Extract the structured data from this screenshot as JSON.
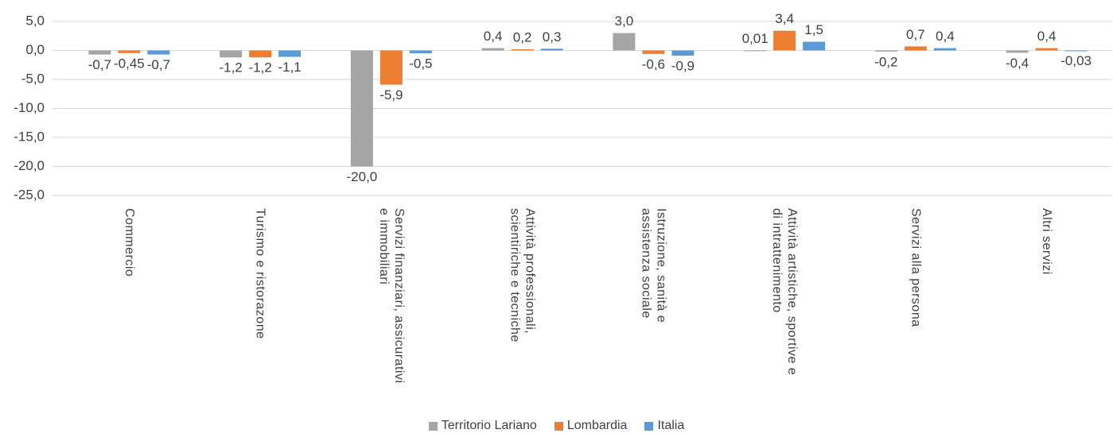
{
  "chart_data": {
    "type": "bar",
    "categories": [
      "Commercio",
      "Turismo e ristorazone",
      "Servizi finanziari, assicurativi e immobiliari",
      "Attività professionali, scientiriche e tecniche",
      "Istruzione, sanità e assistenza sociale",
      "Attività artistiche, sportive e di intrattenimento",
      "Servizi alla persona",
      "Altri servizi"
    ],
    "series": [
      {
        "name": "Territorio Lariano",
        "color": "#a5a5a5",
        "values": [
          -0.7,
          -1.2,
          -20.0,
          0.4,
          3.0,
          0.01,
          -0.2,
          -0.4
        ],
        "value_labels": [
          "-0,7",
          "-1,2",
          "-20,0",
          "0,4",
          "3,0",
          "0,01",
          "-0,2",
          "-0,4"
        ]
      },
      {
        "name": "Lombardia",
        "color": "#ed7d31",
        "values": [
          -0.45,
          -1.2,
          -5.9,
          0.2,
          -0.6,
          3.4,
          0.7,
          0.4
        ],
        "value_labels": [
          "-0,45",
          "-1,2",
          "-5,9",
          "0,2",
          "-0,6",
          "3,4",
          "0,7",
          "0,4"
        ]
      },
      {
        "name": "Italia",
        "color": "#5b9bd5",
        "values": [
          -0.7,
          -1.1,
          -0.5,
          0.3,
          -0.9,
          1.5,
          0.4,
          -0.03
        ],
        "value_labels": [
          "-0,7",
          "-1,1",
          "-0,5",
          "0,3",
          "-0,9",
          "1,5",
          "0,4",
          "-0,03"
        ]
      }
    ],
    "ylim": [
      -25,
      5
    ],
    "yticks": [
      {
        "value": 5,
        "label": "5,0"
      },
      {
        "value": 0,
        "label": "0,0"
      },
      {
        "value": -5,
        "label": "-5,0"
      },
      {
        "value": -10,
        "label": "-10,0"
      },
      {
        "value": -15,
        "label": "-15,0"
      },
      {
        "value": -20,
        "label": "-20,0"
      },
      {
        "value": -25,
        "label": "-25,0"
      }
    ],
    "grid": true
  }
}
